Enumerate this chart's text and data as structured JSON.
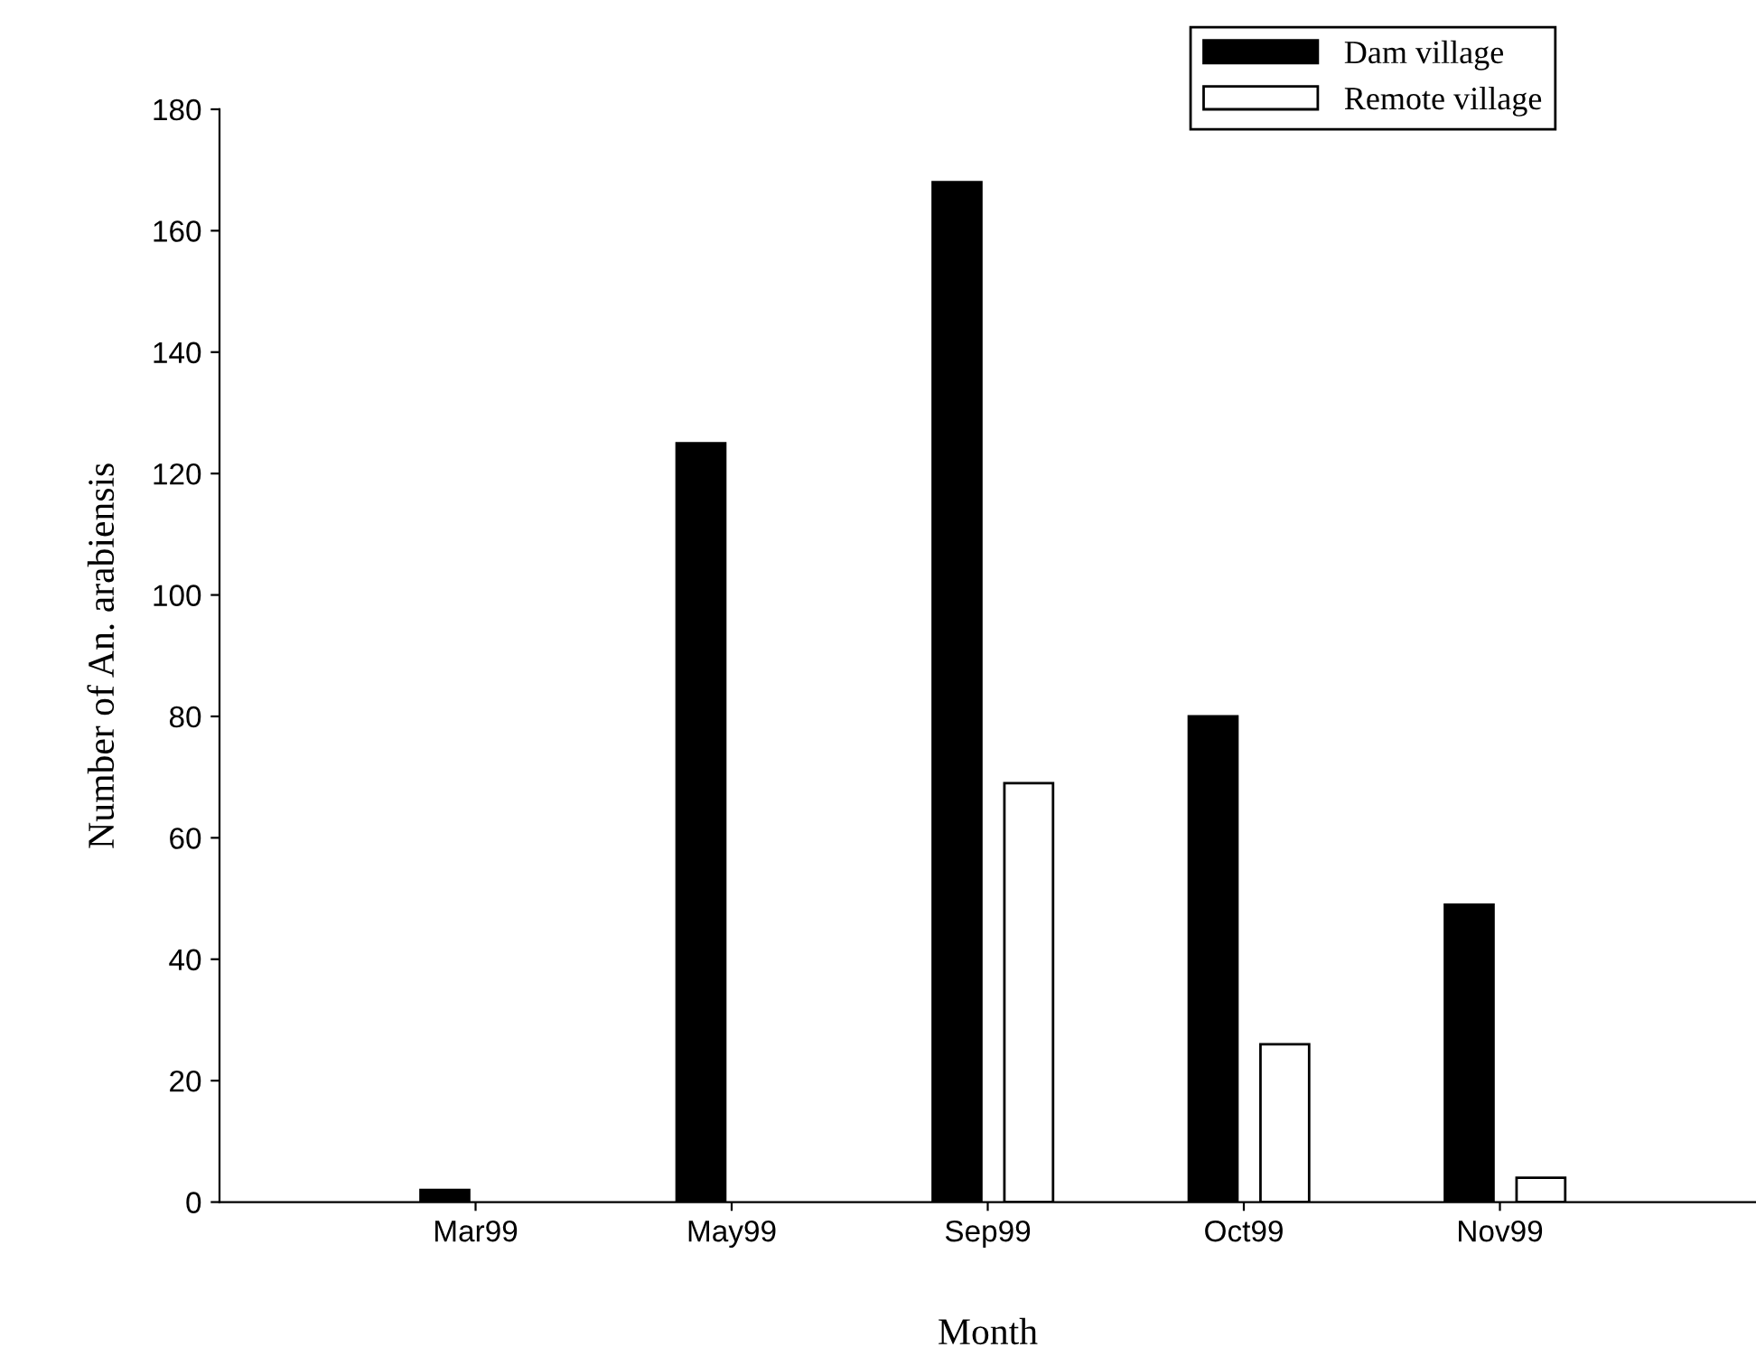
{
  "chart_data": {
    "type": "bar",
    "xlabel": "Month",
    "ylabel": "Number of An. arabiensis",
    "categories": [
      "Mar99",
      "May99",
      "Sep99",
      "Oct99",
      "Nov99"
    ],
    "series": [
      {
        "name": "Dam village",
        "color": "#000000",
        "values": [
          2,
          125,
          168,
          80,
          49
        ]
      },
      {
        "name": "Remote village",
        "color": "#ffffff",
        "values": [
          0,
          0,
          69,
          26,
          4
        ]
      }
    ],
    "ylim": [
      0,
      180
    ],
    "yticks": [
      0,
      20,
      40,
      60,
      80,
      100,
      120,
      140,
      160,
      180
    ],
    "grid": false,
    "legend": "top right"
  }
}
